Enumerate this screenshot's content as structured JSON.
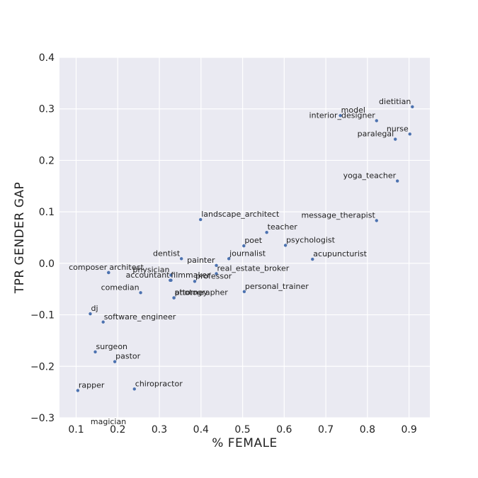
{
  "chart_data": {
    "type": "scatter",
    "title": "",
    "xlabel": "% FEMALE",
    "ylabel": "TPR GENDER GAP",
    "xlim": [
      0.06,
      0.95
    ],
    "ylim": [
      -0.3,
      0.4
    ],
    "xticks": [
      0.1,
      0.2,
      0.3,
      0.4,
      0.5,
      0.6,
      0.7,
      0.8,
      0.9
    ],
    "xtick_labels": [
      "0.1",
      "0.2",
      "0.3",
      "0.4",
      "0.5",
      "0.6",
      "0.7",
      "0.8",
      "0.9"
    ],
    "yticks": [
      -0.3,
      -0.2,
      -0.1,
      0.0,
      0.1,
      0.2,
      0.3,
      0.4
    ],
    "ytick_labels": [
      "−0.3",
      "−0.2",
      "−0.1",
      "0.0",
      "0.1",
      "0.2",
      "0.3",
      "0.4"
    ],
    "grid": true,
    "background": "#EAEAF2",
    "point_color": "#4C72B0",
    "points": [
      {
        "label": "dietitian",
        "x": 0.908,
        "y": 0.304,
        "anchor": "end"
      },
      {
        "label": "model",
        "x": 0.735,
        "y": 0.287,
        "anchor": "start"
      },
      {
        "label": "interior_designer",
        "x": 0.822,
        "y": 0.277,
        "anchor": "end"
      },
      {
        "label": "nurse",
        "x": 0.902,
        "y": 0.251,
        "anchor": "end"
      },
      {
        "label": "paralegal",
        "x": 0.867,
        "y": 0.241,
        "anchor": "end"
      },
      {
        "label": "yoga_teacher",
        "x": 0.872,
        "y": 0.16,
        "anchor": "end"
      },
      {
        "label": "landscape_architect",
        "x": 0.399,
        "y": 0.085,
        "anchor": "start"
      },
      {
        "label": "message_therapist",
        "x": 0.822,
        "y": 0.083,
        "anchor": "end"
      },
      {
        "label": "teacher",
        "x": 0.558,
        "y": 0.06,
        "anchor": "start"
      },
      {
        "label": "poet",
        "x": 0.503,
        "y": 0.034,
        "anchor": "start"
      },
      {
        "label": "psychologist",
        "x": 0.603,
        "y": 0.035,
        "anchor": "start"
      },
      {
        "label": "painter",
        "x": 0.437,
        "y": -0.004,
        "anchor": "end"
      },
      {
        "label": "journalist",
        "x": 0.467,
        "y": 0.009,
        "anchor": "start"
      },
      {
        "label": "acupuncturist",
        "x": 0.668,
        "y": 0.008,
        "anchor": "start"
      },
      {
        "label": "dentist",
        "x": 0.353,
        "y": 0.009,
        "anchor": "end"
      },
      {
        "label": "architect",
        "x": 0.178,
        "y": -0.018,
        "anchor": "start"
      },
      {
        "label": "composer",
        "x": 0.178,
        "y": -0.018,
        "anchor": "end"
      },
      {
        "label": "physician",
        "x": 0.328,
        "y": -0.023,
        "anchor": "end"
      },
      {
        "label": "filmmaker",
        "x": 0.326,
        "y": -0.033,
        "anchor": "start"
      },
      {
        "label": "real_estate_broker",
        "x": 0.437,
        "y": -0.02,
        "anchor": "start"
      },
      {
        "label": "accountant",
        "x": 0.328,
        "y": -0.033,
        "anchor": "end"
      },
      {
        "label": "professor",
        "x": 0.385,
        "y": -0.035,
        "anchor": "start"
      },
      {
        "label": "photographer",
        "x": 0.335,
        "y": -0.067,
        "anchor": "start"
      },
      {
        "label": "personal_trainer",
        "x": 0.504,
        "y": -0.055,
        "anchor": "start"
      },
      {
        "label": "comedian",
        "x": 0.255,
        "y": -0.057,
        "anchor": "end"
      },
      {
        "label": "attorney",
        "x": 0.335,
        "y": -0.067,
        "anchor": "start"
      },
      {
        "label": "dj",
        "x": 0.134,
        "y": -0.098,
        "anchor": "start"
      },
      {
        "label": "software_engineer",
        "x": 0.165,
        "y": -0.114,
        "anchor": "start"
      },
      {
        "label": "surgeon",
        "x": 0.146,
        "y": -0.172,
        "anchor": "start"
      },
      {
        "label": "pastor",
        "x": 0.193,
        "y": -0.191,
        "anchor": "start"
      },
      {
        "label": "rapper",
        "x": 0.104,
        "y": -0.247,
        "anchor": "start"
      },
      {
        "label": "chiropractor",
        "x": 0.24,
        "y": -0.244,
        "anchor": "start"
      },
      {
        "label": "magician",
        "x": 0.133,
        "y": -0.318,
        "anchor": "start"
      }
    ]
  }
}
